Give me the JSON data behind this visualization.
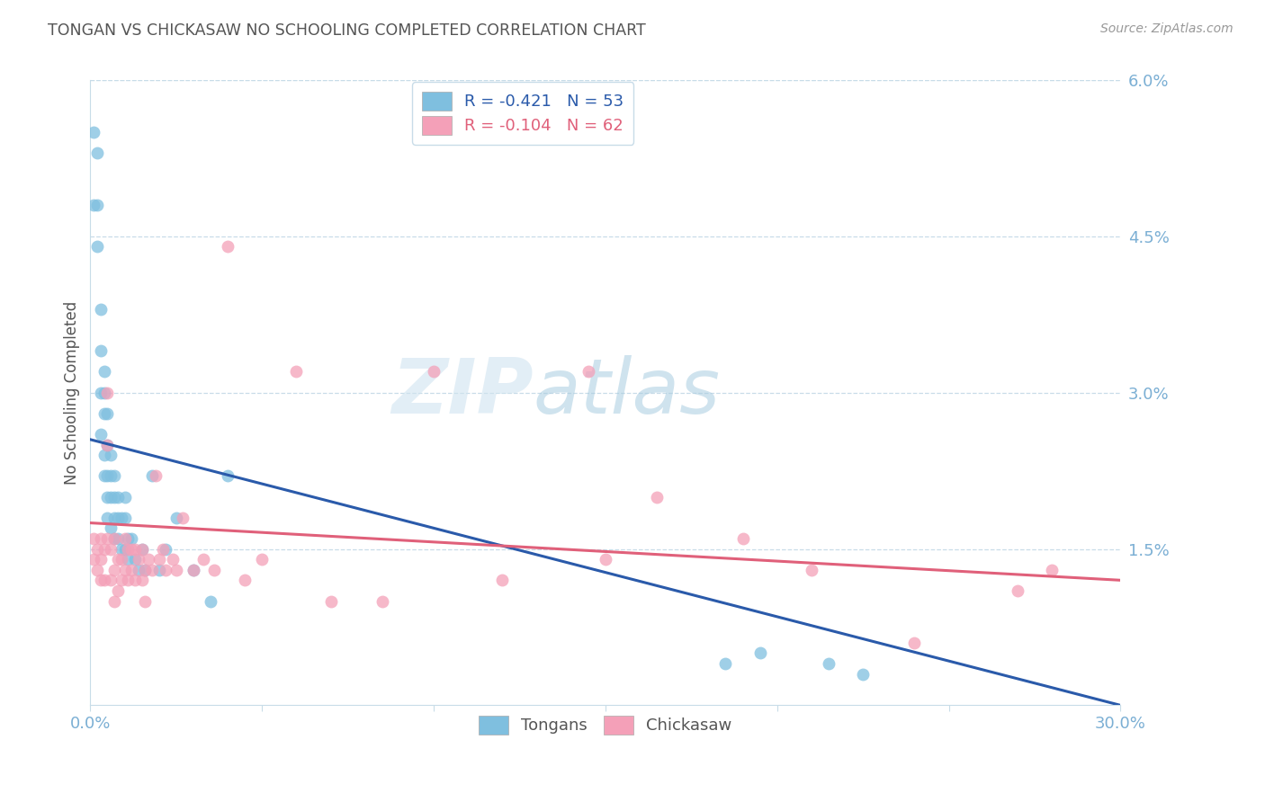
{
  "title": "TONGAN VS CHICKASAW NO SCHOOLING COMPLETED CORRELATION CHART",
  "source": "Source: ZipAtlas.com",
  "ylabel": "No Schooling Completed",
  "watermark": "ZIPatlas",
  "legend_blue_R": "-0.421",
  "legend_blue_N": "53",
  "legend_pink_R": "-0.104",
  "legend_pink_N": "62",
  "ytick_vals": [
    0.0,
    0.015,
    0.03,
    0.045,
    0.06
  ],
  "ytick_labels": [
    "",
    "1.5%",
    "3.0%",
    "4.5%",
    "6.0%"
  ],
  "xtick_vals": [
    0.0,
    0.05,
    0.1,
    0.15,
    0.2,
    0.25,
    0.3
  ],
  "xtick_labels": [
    "0.0%",
    "",
    "",
    "",
    "",
    "",
    "30.0%"
  ],
  "xlim": [
    0.0,
    0.3
  ],
  "ylim": [
    0.0,
    0.06
  ],
  "blue_scatter_color": "#7fbfdf",
  "pink_scatter_color": "#f4a0b8",
  "blue_line_color": "#2a5aaa",
  "pink_line_color": "#e0607a",
  "title_color": "#555555",
  "tick_color": "#7bafd4",
  "grid_color": "#c8dce8",
  "source_color": "#999999",
  "blue_line_y0": 0.0255,
  "blue_line_y1": 0.0,
  "pink_line_y0": 0.0175,
  "pink_line_y1": 0.012,
  "tongans_x": [
    0.001,
    0.001,
    0.002,
    0.002,
    0.002,
    0.003,
    0.003,
    0.003,
    0.003,
    0.004,
    0.004,
    0.004,
    0.004,
    0.004,
    0.005,
    0.005,
    0.005,
    0.005,
    0.005,
    0.006,
    0.006,
    0.006,
    0.006,
    0.007,
    0.007,
    0.007,
    0.007,
    0.008,
    0.008,
    0.008,
    0.009,
    0.009,
    0.01,
    0.01,
    0.01,
    0.011,
    0.011,
    0.012,
    0.013,
    0.014,
    0.015,
    0.016,
    0.018,
    0.02,
    0.022,
    0.025,
    0.03,
    0.035,
    0.04,
    0.185,
    0.195,
    0.215,
    0.225
  ],
  "tongans_y": [
    0.055,
    0.048,
    0.053,
    0.048,
    0.044,
    0.038,
    0.034,
    0.03,
    0.026,
    0.032,
    0.028,
    0.024,
    0.022,
    0.03,
    0.028,
    0.025,
    0.022,
    0.02,
    0.018,
    0.024,
    0.022,
    0.02,
    0.017,
    0.022,
    0.02,
    0.018,
    0.016,
    0.02,
    0.018,
    0.016,
    0.018,
    0.015,
    0.02,
    0.018,
    0.015,
    0.016,
    0.014,
    0.016,
    0.014,
    0.013,
    0.015,
    0.013,
    0.022,
    0.013,
    0.015,
    0.018,
    0.013,
    0.01,
    0.022,
    0.004,
    0.005,
    0.004,
    0.003
  ],
  "chickasaw_x": [
    0.001,
    0.001,
    0.002,
    0.002,
    0.003,
    0.003,
    0.003,
    0.004,
    0.004,
    0.005,
    0.005,
    0.005,
    0.006,
    0.006,
    0.007,
    0.007,
    0.007,
    0.008,
    0.008,
    0.009,
    0.009,
    0.01,
    0.01,
    0.011,
    0.011,
    0.012,
    0.012,
    0.013,
    0.013,
    0.014,
    0.015,
    0.015,
    0.016,
    0.016,
    0.017,
    0.018,
    0.019,
    0.02,
    0.021,
    0.022,
    0.024,
    0.025,
    0.027,
    0.03,
    0.033,
    0.036,
    0.04,
    0.045,
    0.05,
    0.06,
    0.07,
    0.085,
    0.1,
    0.12,
    0.15,
    0.165,
    0.19,
    0.21,
    0.24,
    0.27,
    0.145,
    0.28
  ],
  "chickasaw_y": [
    0.016,
    0.014,
    0.015,
    0.013,
    0.016,
    0.014,
    0.012,
    0.015,
    0.012,
    0.03,
    0.025,
    0.016,
    0.015,
    0.012,
    0.016,
    0.013,
    0.01,
    0.014,
    0.011,
    0.014,
    0.012,
    0.016,
    0.013,
    0.015,
    0.012,
    0.015,
    0.013,
    0.015,
    0.012,
    0.014,
    0.015,
    0.012,
    0.013,
    0.01,
    0.014,
    0.013,
    0.022,
    0.014,
    0.015,
    0.013,
    0.014,
    0.013,
    0.018,
    0.013,
    0.014,
    0.013,
    0.044,
    0.012,
    0.014,
    0.032,
    0.01,
    0.01,
    0.032,
    0.012,
    0.014,
    0.02,
    0.016,
    0.013,
    0.006,
    0.011,
    0.032,
    0.013
  ]
}
